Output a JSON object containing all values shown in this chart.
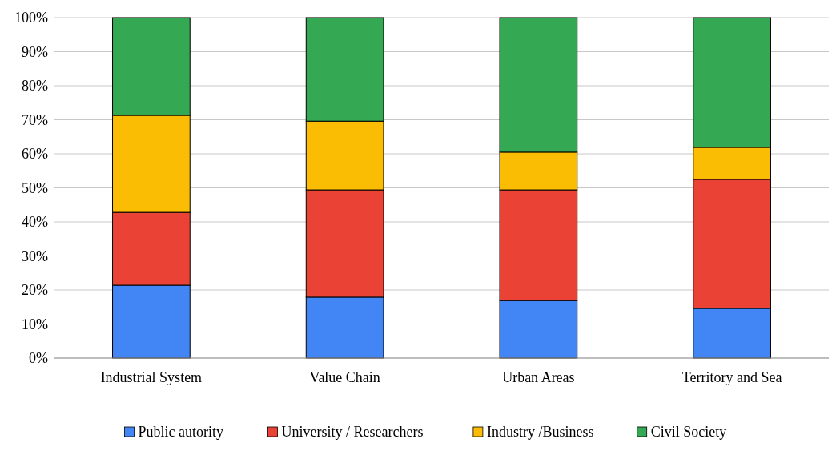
{
  "chart_data": {
    "type": "bar",
    "stacked": true,
    "categories": [
      "Industrial System",
      "Value Chain",
      "Urban Areas",
      "Territory and Sea"
    ],
    "series": [
      {
        "name": "Public autority",
        "color": "#4285f4",
        "values": [
          21.4,
          17.9,
          16.9,
          14.6
        ]
      },
      {
        "name": "University / Researchers",
        "color": "#ea4335",
        "values": [
          21.4,
          31.5,
          32.5,
          37.9
        ]
      },
      {
        "name": "Industry /Business",
        "color": "#fbbc04",
        "values": [
          28.5,
          20.2,
          11.1,
          9.4
        ]
      },
      {
        "name": "Civil Society",
        "color": "#34a853",
        "values": [
          28.7,
          30.4,
          39.5,
          38.1
        ]
      }
    ],
    "ylim": [
      0,
      100
    ],
    "yticks": [
      {
        "value": 0,
        "label": "0%"
      },
      {
        "value": 10,
        "label": "10%"
      },
      {
        "value": 20,
        "label": "20%"
      },
      {
        "value": 30,
        "label": "30%"
      },
      {
        "value": 40,
        "label": "40%"
      },
      {
        "value": 50,
        "label": "50%"
      },
      {
        "value": 60,
        "label": "60%"
      },
      {
        "value": 70,
        "label": "70%"
      },
      {
        "value": 80,
        "label": "80%"
      },
      {
        "value": 90,
        "label": "90%"
      },
      {
        "value": 100,
        "label": "100%"
      }
    ],
    "grid": "y",
    "legend": "bottom"
  }
}
